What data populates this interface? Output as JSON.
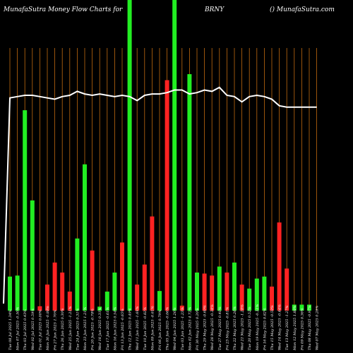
{
  "header": {
    "title_left": "MunafaSutra  Money Flow  Charts for",
    "symbol": "BRNY",
    "title_right": "() MunafaSutra.com"
  },
  "chart_data": {
    "type": "bar",
    "title": "MunafaSutra  Money Flow  Charts for BRNY",
    "categories": [
      "Tue 08 Jul 2025 1.34%",
      "Mon 07 Jul 2025 -0.50%",
      "Thu 03 Jul 2025 0.43%",
      "Wed 02 Jul 2025 0.59%",
      "Tue 01 Jul 2025 0.00%",
      "Mon 30 Jun 2025 -0.88%",
      "Fri 27 Jun 2025 1.70%",
      "Thu 26 Jun 2025 0.30%",
      "Wed 25 Jun 2025 -1.21%",
      "Tue 24 Jun 2025 0.31%",
      "Mon 23 Jun 2025 1.21%",
      "Fri 20 Jun 2025 -0.78%",
      "Wed 18 Jun 2025 0.31%",
      "Tue 17 Jun 2025 -0.61%",
      "Mon 16 Jun 2025 0.54%",
      "Fri 13 Jun 2025 -0.65%",
      "Thu 12 Jun 2025 0.49%",
      "Wed 11 Jun 2025 -1.69%",
      "Tue 10 Jun 2025 -0.82%",
      "Mon 09 Jun 2025 -0.61%",
      "Fri 06 Jun 2025 0.79%",
      "Thu 05 Jun 2025 -0.06%",
      "Wed 04 Jun 2025 1.26%",
      "Tue 03 Jun 2025 -1.23%",
      "Mon 02 Jun 2025 4.72%",
      "Fri 30 May 2025 0.20%",
      "Thu 29 May 2025 -0.60%",
      "Wed 28 May 2025 -0.34%",
      "Tue 27 May 2025 0.40%",
      "Fri 23 May 2025 -0.81%",
      "Thu 22 May 2025 0.26%",
      "Wed 21 May 2025 -1.28%",
      "Tue 20 May 2025 0.52%",
      "Mon 19 May 2025 -0.31%",
      "Fri 16 May 2025 0.82%",
      "Thu 15 May 2025 -0.59%",
      "Wed 14 May 2025 -0.64%",
      "Tue 13 May 2025 -1.27%",
      "Mon 12 May 2025 1.88%",
      "Fri 09 May 2025 0.36%",
      "Thu 08 May 2025 -0.97%",
      "Wed 07 May 2025 0.28%"
    ],
    "series": [
      {
        "kind": "bar",
        "values": [
          17,
          17.5,
          100,
          55,
          2.2,
          13,
          24,
          19,
          9.5,
          36,
          73,
          30,
          2,
          9.5,
          19,
          34,
          155,
          13,
          23,
          47,
          9.8,
          115,
          155,
          2.5,
          118,
          19,
          18.5,
          17.5,
          22,
          19,
          24,
          13,
          11,
          16,
          17,
          12,
          44,
          21,
          3,
          3,
          3,
          0
        ],
        "colors": [
          "green",
          "green",
          "green",
          "green",
          "red",
          "red",
          "red",
          "red",
          "red",
          "green",
          "green",
          "red",
          "green",
          "green",
          "green",
          "red",
          "green",
          "red",
          "red",
          "red",
          "green",
          "red",
          "green",
          "red",
          "green",
          "green",
          "red",
          "red",
          "green",
          "red",
          "green",
          "red",
          "green",
          "green",
          "green",
          "red",
          "red",
          "red",
          "green",
          "green",
          "green",
          "green"
        ]
      },
      {
        "kind": "line",
        "values": [
          81,
          81.5,
          82,
          82,
          81.5,
          81,
          80.5,
          81.5,
          82,
          83.5,
          82.5,
          82,
          82.5,
          82,
          81.5,
          82,
          81.5,
          80,
          82,
          82.5,
          82.5,
          83,
          84,
          84,
          82.5,
          83,
          84,
          83.5,
          85,
          82,
          81.5,
          79.5,
          81.5,
          82,
          81.5,
          80.5,
          78,
          77.5,
          77.5,
          77.5,
          77.5,
          77.5
        ]
      }
    ],
    "ylim": [
      0,
      155
    ],
    "xlabel": "",
    "ylabel": "",
    "grid": true
  }
}
